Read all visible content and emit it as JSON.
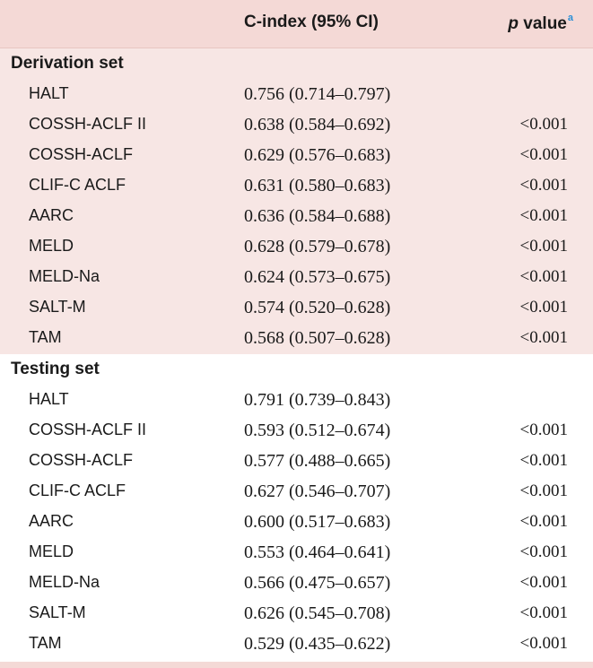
{
  "header": {
    "cindex_label": "C-index (95% CI)",
    "p_label_italic": "p",
    "p_label_rest": " value",
    "p_label_sup": "a"
  },
  "derivation": {
    "title": "Derivation set",
    "rows": [
      {
        "name": "HALT",
        "cindex": "0.756 (0.714–0.797)",
        "p": ""
      },
      {
        "name": "COSSH-ACLF II",
        "cindex": "0.638 (0.584–0.692)",
        "p": "<0.001"
      },
      {
        "name": "COSSH-ACLF",
        "cindex": "0.629 (0.576–0.683)",
        "p": "<0.001"
      },
      {
        "name": "CLIF-C ACLF",
        "cindex": "0.631 (0.580–0.683)",
        "p": "<0.001"
      },
      {
        "name": "AARC",
        "cindex": "0.636 (0.584–0.688)",
        "p": "<0.001"
      },
      {
        "name": "MELD",
        "cindex": "0.628 (0.579–0.678)",
        "p": "<0.001"
      },
      {
        "name": "MELD-Na",
        "cindex": "0.624 (0.573–0.675)",
        "p": "<0.001"
      },
      {
        "name": "SALT-M",
        "cindex": "0.574 (0.520–0.628)",
        "p": "<0.001"
      },
      {
        "name": "TAM",
        "cindex": "0.568 (0.507–0.628)",
        "p": "<0.001"
      }
    ]
  },
  "testing": {
    "title": "Testing set",
    "rows": [
      {
        "name": "HALT",
        "cindex": "0.791 (0.739–0.843)",
        "p": ""
      },
      {
        "name": "COSSH-ACLF II",
        "cindex": "0.593 (0.512–0.674)",
        "p": "<0.001"
      },
      {
        "name": "COSSH-ACLF",
        "cindex": "0.577 (0.488–0.665)",
        "p": "<0.001"
      },
      {
        "name": "CLIF-C ACLF",
        "cindex": "0.627 (0.546–0.707)",
        "p": "<0.001"
      },
      {
        "name": "AARC",
        "cindex": "0.600 (0.517–0.683)",
        "p": "<0.001"
      },
      {
        "name": "MELD",
        "cindex": "0.553 (0.464–0.641)",
        "p": "<0.001"
      },
      {
        "name": "MELD-Na",
        "cindex": "0.566 (0.475–0.657)",
        "p": "<0.001"
      },
      {
        "name": "SALT-M",
        "cindex": "0.626 (0.545–0.708)",
        "p": "<0.001"
      },
      {
        "name": "TAM",
        "cindex": "0.529 (0.435–0.622)",
        "p": "<0.001"
      }
    ]
  }
}
